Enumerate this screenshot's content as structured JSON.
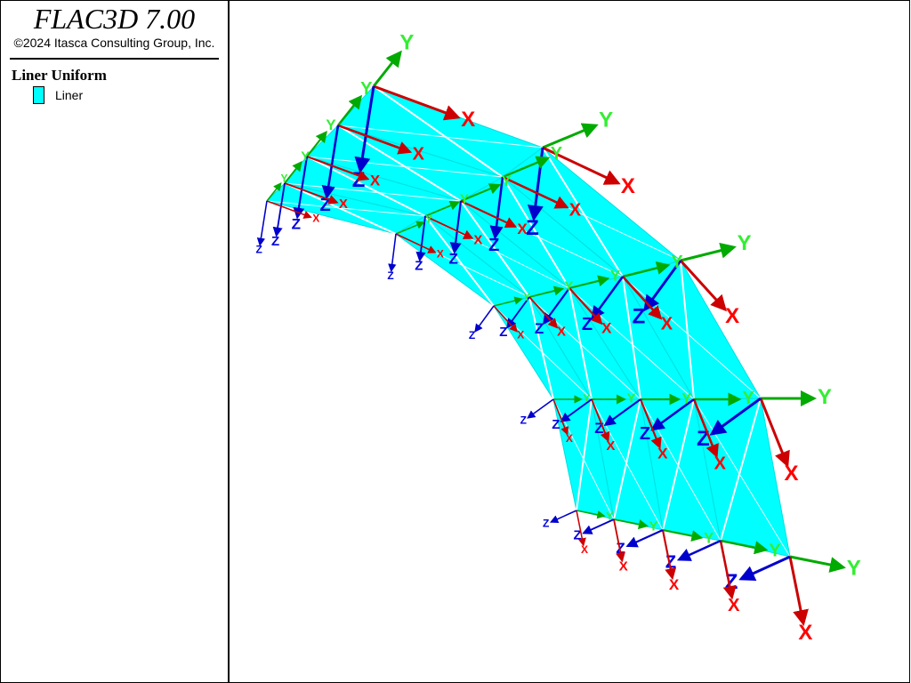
{
  "header": {
    "title": "FLAC3D 7.00",
    "copyright": "©2024 Itasca Consulting Group, Inc."
  },
  "legend": {
    "title": "Liner Uniform",
    "items": [
      "Liner"
    ]
  },
  "axis_labels": [
    "X",
    "Y",
    "Z"
  ]
}
